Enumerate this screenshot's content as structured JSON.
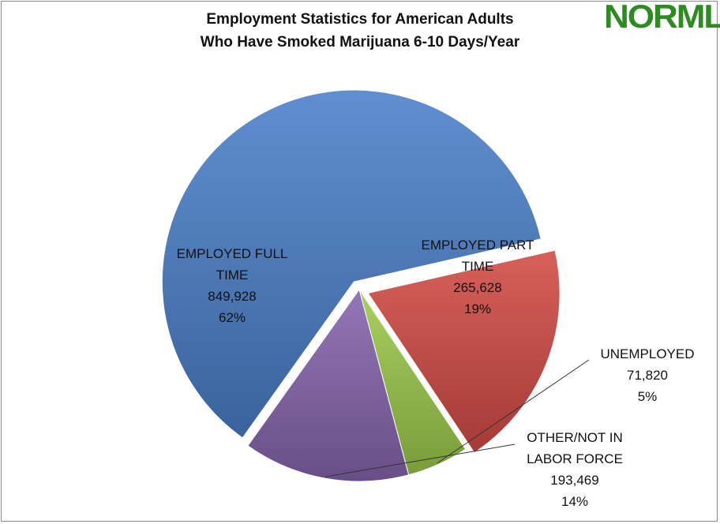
{
  "brand": {
    "logo_text": "NORML",
    "logo_color": "#2e8b22"
  },
  "chart_data": {
    "type": "pie",
    "title": "Employment Statistics for American Adults Who Have Smoked Marijuana 6-10 Days/Year",
    "title_lines": [
      "Employment Statistics for American Adults",
      "Who Have Smoked Marijuana 6-10 Days/Year"
    ],
    "slices": [
      {
        "label": "EMPLOYED FULL TIME",
        "label_lines": [
          "EMPLOYED FULL",
          "TIME"
        ],
        "value": 849928,
        "value_text": "849,928",
        "percent_text": "62%",
        "color": "#4a7fc8",
        "exploded": true
      },
      {
        "label": "EMPLOYED PART TIME",
        "label_lines": [
          "EMPLOYED PART",
          "TIME"
        ],
        "value": 265628,
        "value_text": "265,628",
        "percent_text": "19%",
        "color": "#d24a45",
        "exploded": true
      },
      {
        "label": "UNEMPLOYED",
        "label_lines": [
          "UNEMPLOYED"
        ],
        "value": 71820,
        "value_text": "71,820",
        "percent_text": "5%",
        "color": "#9dc84a",
        "exploded": false
      },
      {
        "label": "OTHER/NOT IN LABOR FORCE",
        "label_lines": [
          "OTHER/NOT IN",
          "LABOR FORCE"
        ],
        "value": 193469,
        "value_text": "193,469",
        "percent_text": "14%",
        "color": "#8564ad",
        "exploded": false
      }
    ]
  }
}
